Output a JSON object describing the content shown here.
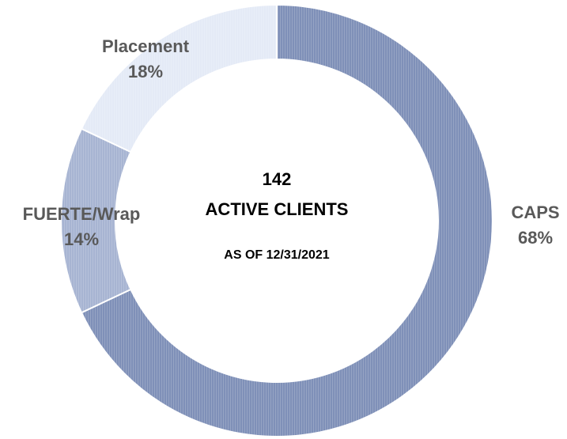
{
  "chart_data": {
    "type": "donut",
    "categories": [
      "CAPS",
      "FUERTE/Wrap",
      "Placement"
    ],
    "values": [
      68,
      14,
      18
    ],
    "value_labels": [
      "68%",
      "14%",
      "18%"
    ],
    "colors": [
      "#7f90b8",
      "#a7b4d2",
      "#e4eaf6"
    ],
    "center_labels": [
      "142",
      "ACTIVE CLIENTS",
      "AS OF 12/31/2021"
    ]
  }
}
